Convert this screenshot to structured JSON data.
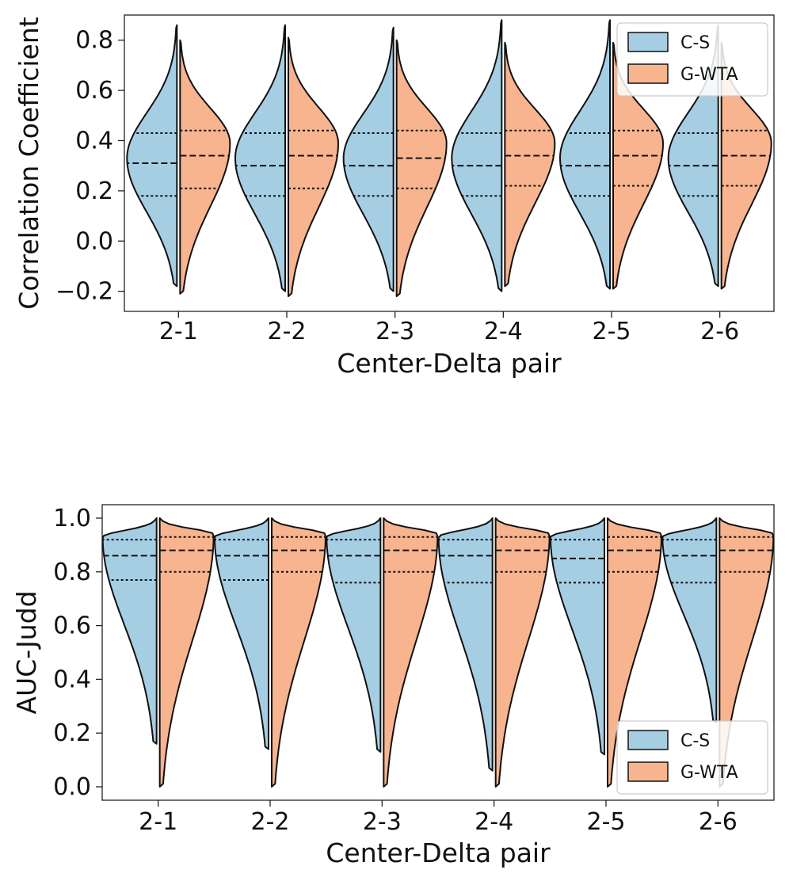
{
  "chart_data": [
    {
      "type": "violin",
      "split": true,
      "xlabel": "Center-Delta pair",
      "ylabel": "Correlation Coefficient",
      "categories": [
        "2-1",
        "2-2",
        "2-3",
        "2-4",
        "2-5",
        "2-6"
      ],
      "yticks": [
        -0.2,
        0.0,
        0.2,
        0.4,
        0.6,
        0.8
      ],
      "ylim": [
        -0.28,
        0.9
      ],
      "legend_position": "top-right",
      "series": [
        {
          "name": "C-S",
          "color": "#a6cee3",
          "min": [
            -0.18,
            -0.2,
            -0.2,
            -0.2,
            -0.19,
            -0.18
          ],
          "max": [
            0.86,
            0.86,
            0.85,
            0.88,
            0.88,
            0.86
          ],
          "q1": [
            0.18,
            0.18,
            0.18,
            0.18,
            0.18,
            0.18
          ],
          "median": [
            0.31,
            0.3,
            0.3,
            0.3,
            0.3,
            0.3
          ],
          "q3": [
            0.43,
            0.43,
            0.43,
            0.43,
            0.43,
            0.43
          ],
          "mode": [
            0.33,
            0.33,
            0.33,
            0.33,
            0.33,
            0.33
          ]
        },
        {
          "name": "G-WTA",
          "color": "#f7b48f",
          "min": [
            -0.21,
            -0.22,
            -0.22,
            -0.18,
            -0.19,
            -0.19
          ],
          "max": [
            0.8,
            0.81,
            0.8,
            0.79,
            0.79,
            0.79
          ],
          "q1": [
            0.21,
            0.21,
            0.21,
            0.22,
            0.22,
            0.22
          ],
          "median": [
            0.34,
            0.34,
            0.33,
            0.34,
            0.34,
            0.34
          ],
          "q3": [
            0.44,
            0.44,
            0.44,
            0.44,
            0.44,
            0.44
          ],
          "mode": [
            0.39,
            0.39,
            0.39,
            0.39,
            0.39,
            0.39
          ]
        }
      ]
    },
    {
      "type": "violin",
      "split": true,
      "xlabel": "Center-Delta pair",
      "ylabel": "AUC-Judd",
      "categories": [
        "2-1",
        "2-2",
        "2-3",
        "2-4",
        "2-5",
        "2-6"
      ],
      "yticks": [
        0.0,
        0.2,
        0.4,
        0.6,
        0.8,
        1.0
      ],
      "ylim": [
        -0.05,
        1.05
      ],
      "legend_position": "bottom-right",
      "series": [
        {
          "name": "C-S",
          "color": "#a6cee3",
          "min": [
            0.16,
            0.14,
            0.13,
            0.06,
            0.12,
            0.24
          ],
          "max": [
            1.0,
            1.0,
            1.0,
            1.0,
            1.0,
            1.0
          ],
          "q1": [
            0.77,
            0.77,
            0.76,
            0.76,
            0.76,
            0.76
          ],
          "median": [
            0.86,
            0.86,
            0.86,
            0.86,
            0.85,
            0.86
          ],
          "q3": [
            0.92,
            0.92,
            0.92,
            0.92,
            0.92,
            0.92
          ],
          "mode": [
            0.93,
            0.93,
            0.93,
            0.93,
            0.93,
            0.93
          ]
        },
        {
          "name": "G-WTA",
          "color": "#f7b48f",
          "min": [
            0.0,
            0.0,
            0.0,
            0.0,
            0.0,
            0.0
          ],
          "max": [
            1.0,
            1.0,
            1.0,
            1.0,
            1.0,
            1.0
          ],
          "q1": [
            0.8,
            0.8,
            0.8,
            0.8,
            0.8,
            0.8
          ],
          "median": [
            0.88,
            0.88,
            0.88,
            0.88,
            0.88,
            0.88
          ],
          "q3": [
            0.93,
            0.93,
            0.93,
            0.93,
            0.93,
            0.93
          ],
          "mode": [
            0.94,
            0.94,
            0.94,
            0.94,
            0.94,
            0.94
          ]
        }
      ]
    }
  ]
}
